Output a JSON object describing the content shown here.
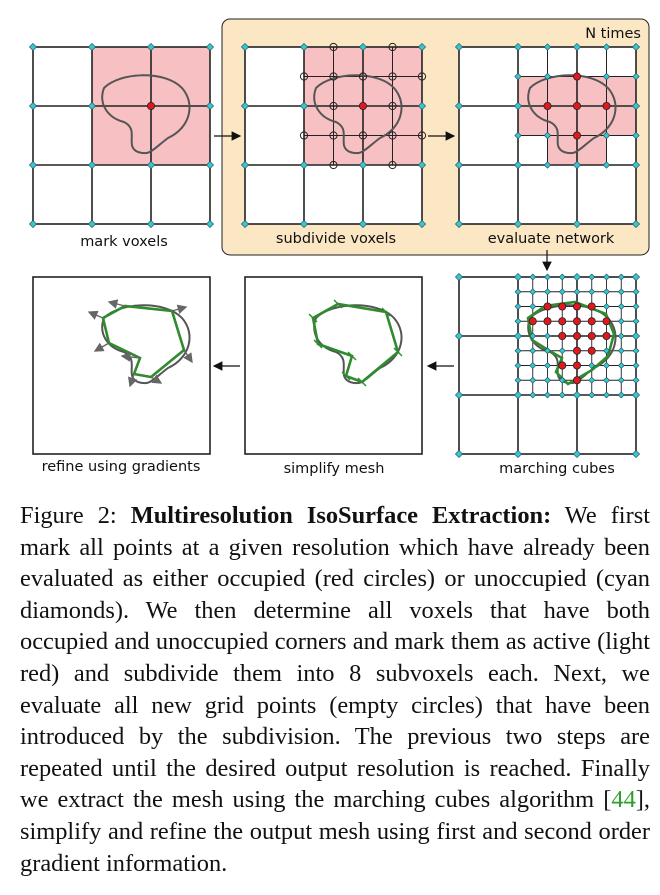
{
  "figure": {
    "loop_label": "N times",
    "panel_labels": {
      "mark": "mark voxels",
      "subdivide": "subdivide voxels",
      "evaluate": "evaluate network",
      "marching": "marching cubes",
      "simplify": "simplify mesh",
      "refine": "refine using gradients"
    },
    "colors": {
      "active_voxel": "#f7c1c4",
      "occupied_point": "#e0191f",
      "unoccupied_point": "#38c6d3",
      "loop_box": "#fbe7c4",
      "mesh": "#2e8b2e",
      "isosurface": "#555555"
    }
  },
  "caption": {
    "prefix": "Figure 2: ",
    "title": "Multiresolution IsoSurface Extraction:",
    "text_1": " We first mark all points at a given resolution which have already been evaluated as either occupied (red circles) or unoccupied (cyan diamonds). We then determine all voxels that have both occupied and unoccupied corners and mark them as active (light red) and subdivide them into 8 subvoxels each. Next, we evaluate all new grid points (empty circles) that have been introduced by the subdivision. The previous two steps are repeated until the desired output resolution is reached. Finally we extract the mesh using the marching cubes algorithm [",
    "citation": "44",
    "text_2": "], simplify and refine the output mesh using first and second order gradient information."
  }
}
